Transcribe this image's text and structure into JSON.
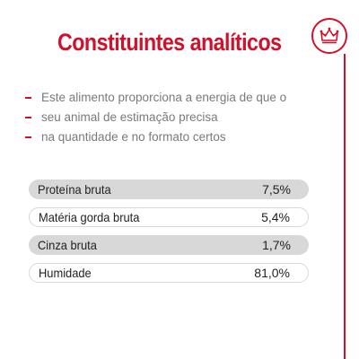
{
  "title": "Constituintes analíticos",
  "logo_icon": "crown-icon",
  "brand_color": "#d0112b",
  "intro_lines": [
    "Este alimento proporciona a energia de que o",
    "seu animal de estimação precisa",
    "na quantidade e no formato certos"
  ],
  "nutrients": [
    {
      "name": "Proteína bruta",
      "value": "7,5%"
    },
    {
      "name": "Matéria gorda bruta",
      "value": "5,4%"
    },
    {
      "name": "Cinza bruta",
      "value": "1,7%"
    },
    {
      "name": "Humidade",
      "value": "81,0%"
    }
  ]
}
